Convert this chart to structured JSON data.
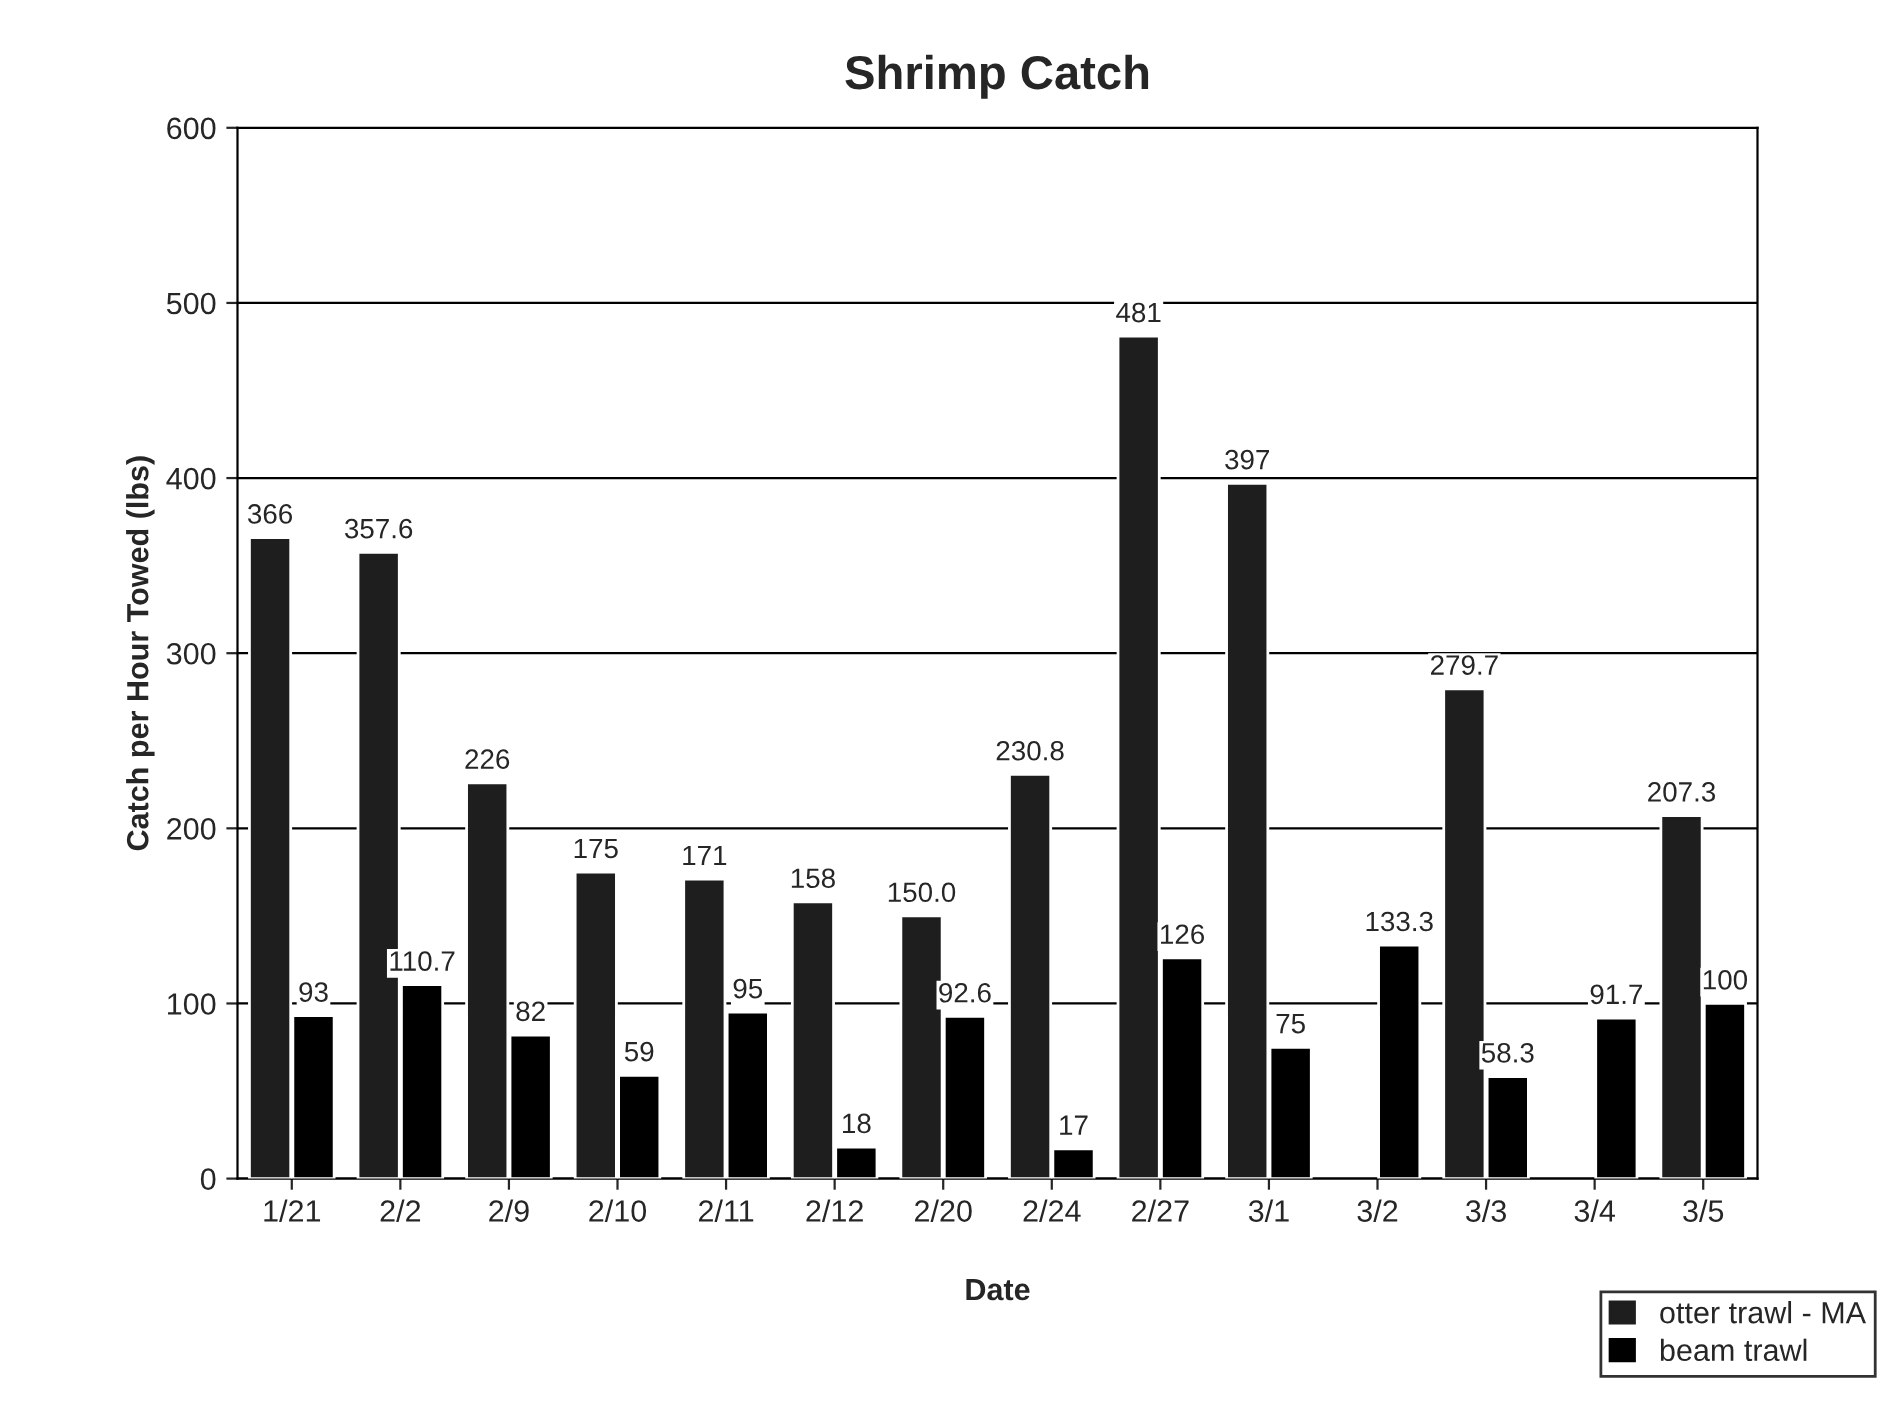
{
  "chart_data": {
    "type": "bar",
    "title": "Shrimp Catch",
    "xlabel": "Date",
    "ylabel": "Catch per Hour Towed (lbs)",
    "categories": [
      "1/21",
      "2/2",
      "2/9",
      "2/10",
      "2/11",
      "2/12",
      "2/20",
      "2/24",
      "2/27",
      "3/1",
      "3/2",
      "3/3",
      "3/4",
      "3/5"
    ],
    "series": [
      {
        "name": "otter trawl - MA",
        "color": "#1e1e1e",
        "values": [
          366,
          357.6,
          226,
          175,
          171,
          158,
          150.0,
          230.8,
          481,
          397,
          null,
          279.7,
          null,
          207.3
        ],
        "value_labels": [
          "366",
          "357.6",
          "226",
          "175",
          "171",
          "158",
          "150.0",
          "230.8",
          "481",
          "397",
          null,
          "279.7",
          null,
          "207.3"
        ]
      },
      {
        "name": "beam trawl",
        "color": "#000000",
        "values": [
          93,
          110.7,
          82,
          59,
          95,
          18,
          92.6,
          17,
          126,
          75,
          133.3,
          58.3,
          91.7,
          100
        ],
        "value_labels": [
          "93",
          "110.7",
          "82",
          "59",
          "95",
          "18",
          "92.6",
          "17",
          "126",
          "75",
          "133.3",
          "58.3",
          "91.7",
          "100"
        ]
      }
    ],
    "ylim": [
      0,
      600
    ],
    "yticks": [
      0,
      100,
      200,
      300,
      400,
      500,
      600
    ],
    "grid": "y",
    "legend": "bottom right"
  }
}
